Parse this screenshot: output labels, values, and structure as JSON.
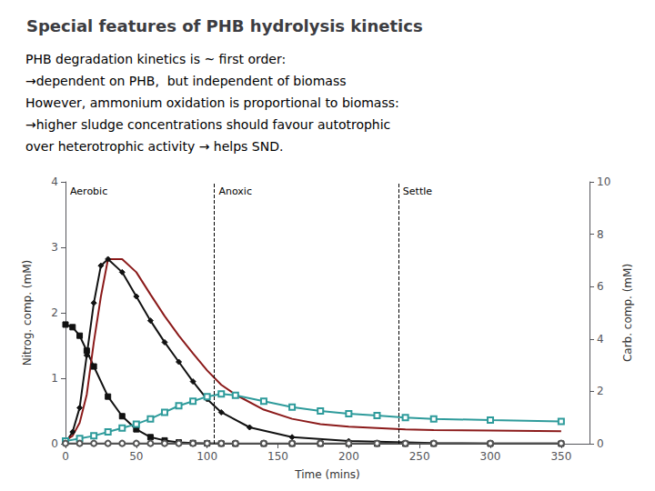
{
  "chart_data": {
    "type": "line",
    "title": "Special features of PHB hydrolysis kinetics",
    "annotations": [
      "PHB degradation kinetics is ~ first order:",
      "→dependent on PHB,  but independent of biomass",
      "However, ammonium oxidation is proportional to biomass:",
      "→higher sludge concentrations should favour autotrophic",
      "over heterotrophic activity → helps SND."
    ],
    "xlabel": "Time (mins)",
    "ylabel": "Nitrog. comp. (mM)",
    "y2label": "Carb. comp. (mM)",
    "xlim": [
      0,
      370
    ],
    "xticks": [
      0,
      50,
      100,
      150,
      200,
      250,
      300,
      350
    ],
    "ylim": [
      0,
      4
    ],
    "yticks": [
      0,
      1,
      2,
      3,
      4
    ],
    "y2lim": [
      0,
      10
    ],
    "y2ticks": [
      0,
      2,
      4,
      6,
      8,
      10
    ],
    "grid": false,
    "vlines": [
      105,
      235
    ],
    "zone_labels": [
      "Aerobic",
      "Anoxic",
      "Settle"
    ],
    "series": [
      {
        "color": "#111111",
        "marker": "square",
        "x": [
          0,
          5,
          10,
          15,
          20,
          30,
          40,
          50,
          60,
          70,
          80,
          90,
          100,
          110,
          120,
          140,
          160,
          180,
          200,
          220,
          240,
          260,
          300,
          350
        ],
        "values": [
          1.82,
          1.78,
          1.65,
          1.42,
          1.18,
          0.72,
          0.42,
          0.22,
          0.1,
          0.05,
          0.02,
          0.01,
          0.005,
          0.002,
          0.001,
          0.001,
          0.001,
          0.001,
          0.001,
          0.001,
          0.001,
          0.001,
          0.001,
          0.001
        ]
      },
      {
        "color": "#111111",
        "marker": "diamond",
        "x": [
          0,
          5,
          10,
          15,
          20,
          25,
          30,
          40,
          50,
          60,
          70,
          80,
          90,
          100,
          110,
          130,
          160,
          200,
          260,
          300,
          350
        ],
        "values": [
          0.01,
          0.18,
          0.55,
          1.35,
          2.15,
          2.72,
          2.82,
          2.62,
          2.25,
          1.88,
          1.55,
          1.25,
          0.95,
          0.68,
          0.48,
          0.25,
          0.1,
          0.04,
          0.01,
          0.005,
          0.003
        ]
      },
      {
        "color": "#8b1a1a",
        "marker": "none",
        "x": [
          0,
          5,
          10,
          15,
          20,
          25,
          30,
          40,
          50,
          60,
          70,
          80,
          90,
          100,
          110,
          120,
          140,
          160,
          180,
          200,
          220,
          240,
          260,
          300,
          350
        ],
        "values": [
          0.05,
          0.12,
          0.32,
          0.75,
          1.55,
          2.25,
          2.82,
          2.82,
          2.62,
          2.28,
          1.95,
          1.65,
          1.38,
          1.12,
          0.9,
          0.75,
          0.52,
          0.38,
          0.3,
          0.26,
          0.24,
          0.22,
          0.21,
          0.2,
          0.19
        ]
      },
      {
        "color": "#2e9b9b",
        "marker": "open_square",
        "x": [
          0,
          10,
          20,
          30,
          40,
          50,
          60,
          70,
          80,
          90,
          100,
          110,
          120,
          140,
          160,
          180,
          200,
          220,
          240,
          260,
          300,
          350
        ],
        "values": [
          0.04,
          0.08,
          0.12,
          0.18,
          0.24,
          0.3,
          0.38,
          0.48,
          0.58,
          0.65,
          0.72,
          0.76,
          0.74,
          0.65,
          0.56,
          0.5,
          0.46,
          0.43,
          0.4,
          0.38,
          0.36,
          0.34
        ]
      },
      {
        "color": "#555555",
        "marker": "open_circle",
        "x": [
          0,
          10,
          20,
          30,
          40,
          50,
          60,
          70,
          80,
          90,
          100,
          110,
          120,
          140,
          160,
          180,
          200,
          220,
          240,
          260,
          300,
          350
        ],
        "values": [
          0.005,
          0.005,
          0.005,
          0.005,
          0.005,
          0.005,
          0.005,
          0.005,
          0.005,
          0.005,
          0.005,
          0.005,
          0.005,
          0.005,
          0.005,
          0.005,
          0.005,
          0.005,
          0.005,
          0.005,
          0.005,
          0.005
        ]
      }
    ]
  }
}
